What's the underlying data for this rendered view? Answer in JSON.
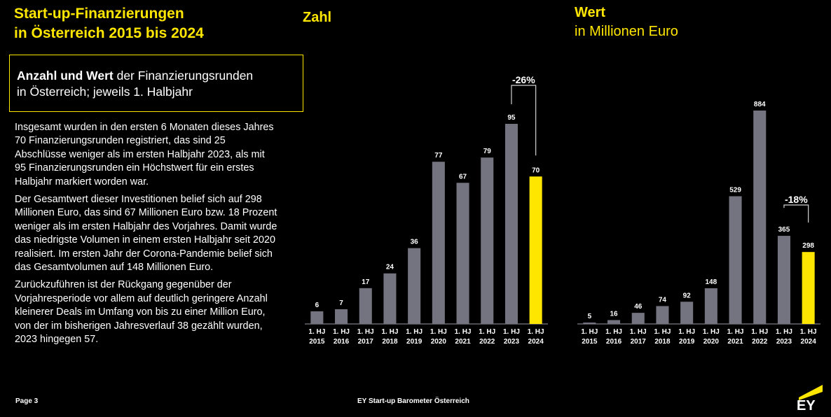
{
  "title": {
    "line1": "Start-up-Finanzierungen",
    "line2": "in Österreich 2015 bis 2024"
  },
  "subtitle_box": {
    "bold": "Anzahl und Wert",
    "rest_line1": " der Finanzierungsrunden",
    "line2": "in Österreich; jeweils 1. Halbjahr"
  },
  "paragraphs": [
    "Insgesamt wurden in den ersten 6 Monaten dieses Jahres 70 Finanzierungsrunden registriert, das sind 25 Abschlüsse weniger als im ersten Halbjahr 2023, als mit 95 Finanzierungsrunden ein Höchstwert für ein erstes Halbjahr markiert worden war.",
    "Der Gesamtwert dieser Investitionen belief sich auf 298 Millionen Euro, das sind 67 Millionen Euro bzw. 18 Prozent weniger als im ersten Halbjahr des Vorjahres. Damit wurde das niedrigste Volumen in einem ersten Halbjahr seit 2020 realisiert. Im ersten Jahr der Corona-Pandemie belief sich das Gesamtvolumen auf 148 Millionen Euro.",
    "Zurückzuführen ist der Rückgang gegenüber der Vorjahresperiode vor allem auf deutlich geringere Anzahl kleinerer Deals im Umfang von bis zu einer Million Euro, von der im bisherigen Jahresverlauf 38 gezählt wurden, 2023 hingegen 57."
  ],
  "footer": {
    "page": "Page 3",
    "center": "EY Start-up Barometer Österreich",
    "logo": "EY"
  },
  "colors": {
    "accent": "#ffe600",
    "bar": "#747480",
    "background": "#000000"
  },
  "chart_data": [
    {
      "type": "bar",
      "title": "Zahl",
      "categories": [
        "1. HJ|2015",
        "1. HJ|2016",
        "1. HJ|2017",
        "1. HJ|2018",
        "1. HJ|2019",
        "1. HJ|2020",
        "1. HJ|2021",
        "1. HJ|2022",
        "1. HJ|2023",
        "1. HJ|2024"
      ],
      "values": [
        6,
        7,
        17,
        24,
        36,
        77,
        67,
        79,
        95,
        70
      ],
      "highlight_index": 9,
      "annotation": {
        "label": "-26%",
        "from_index": 8,
        "to_index": 9
      },
      "ylim": [
        0,
        95
      ]
    },
    {
      "type": "bar",
      "title": "Wert",
      "subtitle": "in Millionen Euro",
      "categories": [
        "1. HJ|2015",
        "1. HJ|2016",
        "1. HJ|2017",
        "1. HJ|2018",
        "1. HJ|2019",
        "1. HJ|2020",
        "1. HJ|2021",
        "1. HJ|2022",
        "1. HJ|2023",
        "1. HJ|2024"
      ],
      "values": [
        5,
        16,
        46,
        74,
        92,
        148,
        529,
        884,
        365,
        298
      ],
      "highlight_index": 9,
      "annotation": {
        "label": "-18%",
        "from_index": 8,
        "to_index": 9
      },
      "ylim": [
        0,
        884
      ]
    }
  ]
}
